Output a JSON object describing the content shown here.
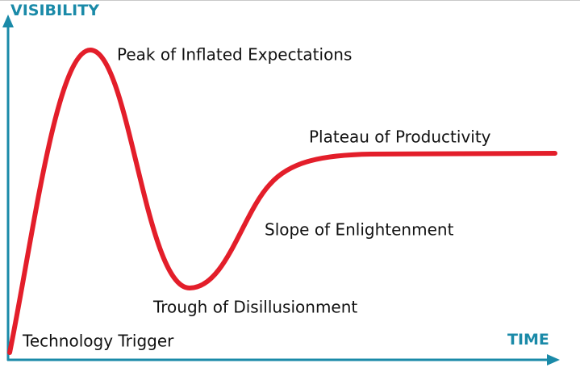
{
  "axes": {
    "y_label": "VISIBILITY",
    "x_label": "TIME"
  },
  "phases": [
    {
      "label": "Technology Trigger"
    },
    {
      "label": "Peak of Inflated Expectations"
    },
    {
      "label": "Trough of Disillusionment"
    },
    {
      "label": "Slope of Enlightenment"
    },
    {
      "label": "Plateau of Productivity"
    }
  ]
}
